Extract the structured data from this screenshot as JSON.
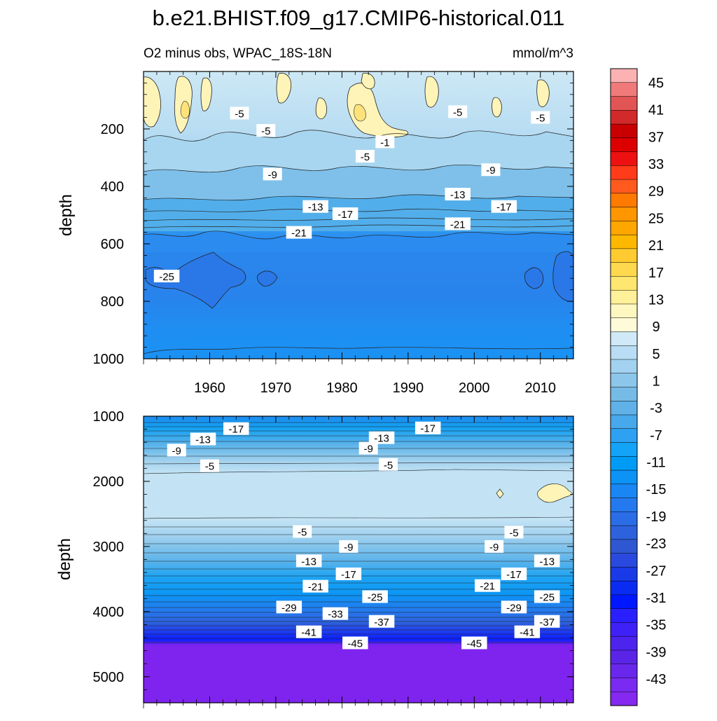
{
  "title": "b.e21.BHIST.f09_g17.CMIP6-historical.011",
  "subtitle_left": "O2 minus obs, WPAC_18S-18N",
  "subtitle_right": "mmol/m^3",
  "chart_data": [
    {
      "type": "heatmap",
      "panel": "upper",
      "ylabel": "depth",
      "ylim": [
        1000,
        0
      ],
      "yticks": [
        "200",
        "400",
        "600",
        "800",
        "1000"
      ],
      "xlim": [
        1950,
        2015
      ],
      "xticks": [
        "1960",
        "1970",
        "1980",
        "1990",
        "2000",
        "2010"
      ],
      "contour_labels": [
        {
          "text": "-5",
          "year": 1964.5,
          "depth": 145
        },
        {
          "text": "-5",
          "year": 1968.5,
          "depth": 205
        },
        {
          "text": "-1",
          "year": 1986.5,
          "depth": 245
        },
        {
          "text": "-5",
          "year": 1997.5,
          "depth": 140
        },
        {
          "text": "-5",
          "year": 2010,
          "depth": 160
        },
        {
          "text": "-5",
          "year": 1983.5,
          "depth": 295
        },
        {
          "text": "-9",
          "year": 1969.5,
          "depth": 357
        },
        {
          "text": "-9",
          "year": 2002.5,
          "depth": 342
        },
        {
          "text": "-13",
          "year": 1976,
          "depth": 470
        },
        {
          "text": "-13",
          "year": 1997.5,
          "depth": 427
        },
        {
          "text": "-17",
          "year": 1980.5,
          "depth": 495
        },
        {
          "text": "-17",
          "year": 2004.5,
          "depth": 470
        },
        {
          "text": "-21",
          "year": 1973.5,
          "depth": 560
        },
        {
          "text": "-21",
          "year": 1997.5,
          "depth": 530
        },
        {
          "text": "-25",
          "year": 1953.5,
          "depth": 712
        }
      ]
    },
    {
      "type": "heatmap",
      "panel": "lower",
      "ylabel": "depth",
      "ylim": [
        1000,
        5400
      ],
      "yticks": [
        "1000",
        "2000",
        "3000",
        "4000",
        "5000"
      ],
      "xlim": [
        1950,
        2015
      ],
      "contour_labels": [
        {
          "text": "-17",
          "year": 1964,
          "depth": 1190
        },
        {
          "text": "-17",
          "year": 1993,
          "depth": 1180
        },
        {
          "text": "-13",
          "year": 1959,
          "depth": 1350
        },
        {
          "text": "-13",
          "year": 1986,
          "depth": 1330
        },
        {
          "text": "-9",
          "year": 1955,
          "depth": 1520
        },
        {
          "text": "-9",
          "year": 1984,
          "depth": 1490
        },
        {
          "text": "-5",
          "year": 1960,
          "depth": 1760
        },
        {
          "text": "-5",
          "year": 1987,
          "depth": 1740
        },
        {
          "text": "-5",
          "year": 1974,
          "depth": 2770
        },
        {
          "text": "-5",
          "year": 2006,
          "depth": 2780
        },
        {
          "text": "-9",
          "year": 1981,
          "depth": 3000
        },
        {
          "text": "-9",
          "year": 2003,
          "depth": 3000
        },
        {
          "text": "-13",
          "year": 1975,
          "depth": 3220
        },
        {
          "text": "-13",
          "year": 2011,
          "depth": 3220
        },
        {
          "text": "-17",
          "year": 1981,
          "depth": 3420
        },
        {
          "text": "-17",
          "year": 2006,
          "depth": 3420
        },
        {
          "text": "-21",
          "year": 1976,
          "depth": 3610
        },
        {
          "text": "-21",
          "year": 2002,
          "depth": 3600
        },
        {
          "text": "-25",
          "year": 1985,
          "depth": 3770
        },
        {
          "text": "-25",
          "year": 2011,
          "depth": 3770
        },
        {
          "text": "-29",
          "year": 1972,
          "depth": 3930
        },
        {
          "text": "-29",
          "year": 2006,
          "depth": 3930
        },
        {
          "text": "-33",
          "year": 1979,
          "depth": 4030
        },
        {
          "text": "-37",
          "year": 1986,
          "depth": 4150
        },
        {
          "text": "-37",
          "year": 2011,
          "depth": 4150
        },
        {
          "text": "-41",
          "year": 1975,
          "depth": 4310
        },
        {
          "text": "-41",
          "year": 2008,
          "depth": 4310
        },
        {
          "text": "-45",
          "year": 1982,
          "depth": 4480
        },
        {
          "text": "-45",
          "year": 2000,
          "depth": 4480
        }
      ]
    }
  ],
  "colorbar": {
    "labels": [
      "45",
      "41",
      "37",
      "33",
      "29",
      "25",
      "21",
      "17",
      "13",
      "9",
      "5",
      "1",
      "-3",
      "-7",
      "-11",
      "-15",
      "-19",
      "-23",
      "-27",
      "-31",
      "-35",
      "-39",
      "-43"
    ],
    "colors": [
      "#fcb2b2",
      "#f07a7a",
      "#e25555",
      "#d22a2a",
      "#c80000",
      "#dd0000",
      "#ee1111",
      "#ff3b1a",
      "#ff5a1e",
      "#ff7a00",
      "#ff9600",
      "#ffa600",
      "#ffb800",
      "#ffcb30",
      "#ffd94d",
      "#ffe670",
      "#fff09a",
      "#fff7c0",
      "#fffbd8",
      "#cfe9f7",
      "#b8ddf4",
      "#a2d2ef",
      "#8cc6ea",
      "#76bbe6",
      "#5fb1e7",
      "#48a8ec",
      "#2ea1f3",
      "#13a3f7",
      "#009bf5",
      "#0d92f5",
      "#1a86f4",
      "#2479ee",
      "#2a6de6",
      "#2d62dc",
      "#2f57d2",
      "#2a49de",
      "#1a3ae8",
      "#0a2cf2",
      "#0018ff",
      "#2a1fff",
      "#3f20f6",
      "#4d23ee",
      "#5a25e6",
      "#6a27ec",
      "#7a2af1",
      "#8528f0"
    ]
  }
}
